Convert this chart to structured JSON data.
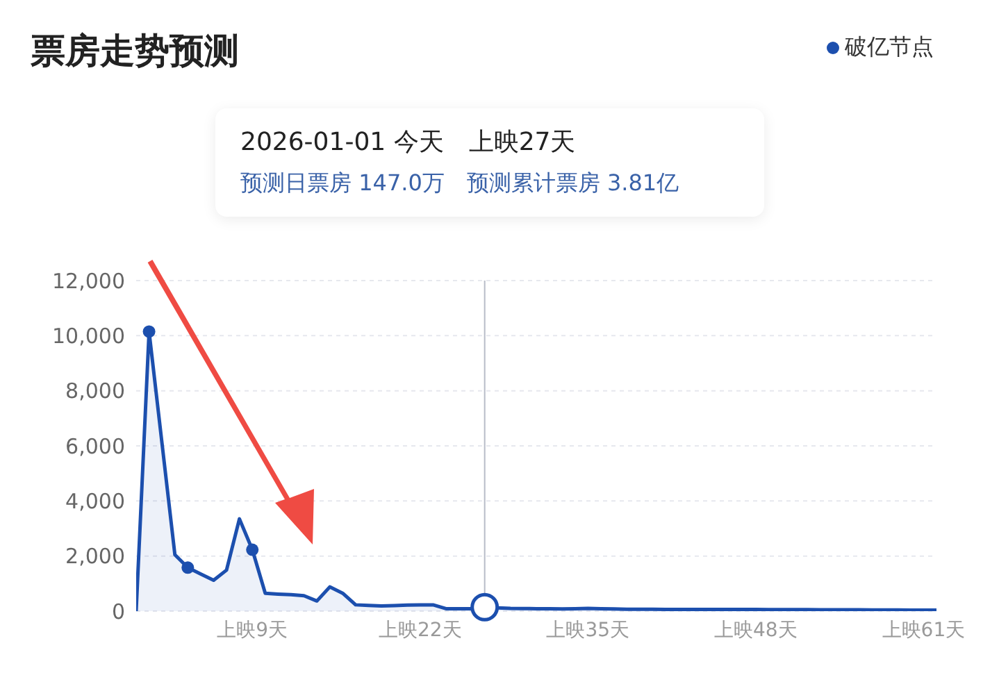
{
  "chart_data": {
    "type": "area",
    "title": "票房走势预测",
    "categories": [
      null,
      null,
      null,
      null,
      null,
      null,
      null,
      null,
      null,
      "上映9天",
      null,
      null,
      null,
      null,
      null,
      null,
      null,
      null,
      null,
      null,
      null,
      null,
      "上映22天",
      null,
      null,
      null,
      null,
      null,
      null,
      null,
      null,
      null,
      null,
      null,
      null,
      "上映35天",
      null,
      null,
      null,
      null,
      null,
      null,
      null,
      null,
      null,
      null,
      null,
      null,
      "上映48天",
      null,
      null,
      null,
      null,
      null,
      null,
      null,
      null,
      null,
      null,
      null,
      null,
      "上映61天",
      null
    ],
    "series": [
      {
        "color": "#1c4fae",
        "values": [
          0,
          10150,
          6100,
          2050,
          1580,
          1350,
          1120,
          1490,
          3350,
          2230,
          650,
          620,
          600,
          560,
          370,
          880,
          650,
          230,
          210,
          190,
          200,
          220,
          230,
          230,
          90,
          90,
          90,
          147,
          120,
          100,
          95,
          90,
          90,
          80,
          90,
          100,
          90,
          80,
          70,
          70,
          70,
          65,
          65,
          65,
          60,
          60,
          60,
          60,
          60,
          55,
          55,
          55,
          55,
          50,
          50,
          50,
          50,
          45,
          45,
          45,
          40,
          40,
          40
        ]
      },
      {
        "type": "scatter",
        "name": "破亿节点",
        "color": "#1c4fae",
        "values": [
          null,
          10150,
          null,
          null,
          1580,
          null,
          null,
          null,
          null,
          2230,
          null,
          null,
          null,
          null,
          null,
          null,
          null,
          null,
          null,
          null,
          null,
          null,
          null,
          null,
          null,
          null,
          null,
          null,
          null,
          null,
          null,
          null,
          null,
          null,
          null,
          null,
          null,
          null,
          null,
          null,
          null,
          null,
          null,
          null,
          null,
          null,
          null,
          null,
          null,
          null,
          null,
          null,
          null,
          null,
          null,
          null,
          null,
          null,
          null,
          null,
          null,
          null,
          null
        ]
      }
    ],
    "ylim": [
      0,
      12000
    ],
    "yticks": [
      0,
      {
        "value": 2000,
        "label": "2,000"
      },
      {
        "value": 4000,
        "label": "4,000"
      },
      {
        "value": 6000,
        "label": "6,000"
      },
      {
        "value": 8000,
        "label": "8,000"
      },
      {
        "value": 10000,
        "label": "10,000"
      },
      {
        "value": 12000,
        "label": "12,000"
      }
    ],
    "grid": "y",
    "legend": "top right",
    "annotations": [
      "2026-01-01 今天　上映27天",
      "预测日票房 147.0万　预测累计票房 3.81亿"
    ]
  }
}
